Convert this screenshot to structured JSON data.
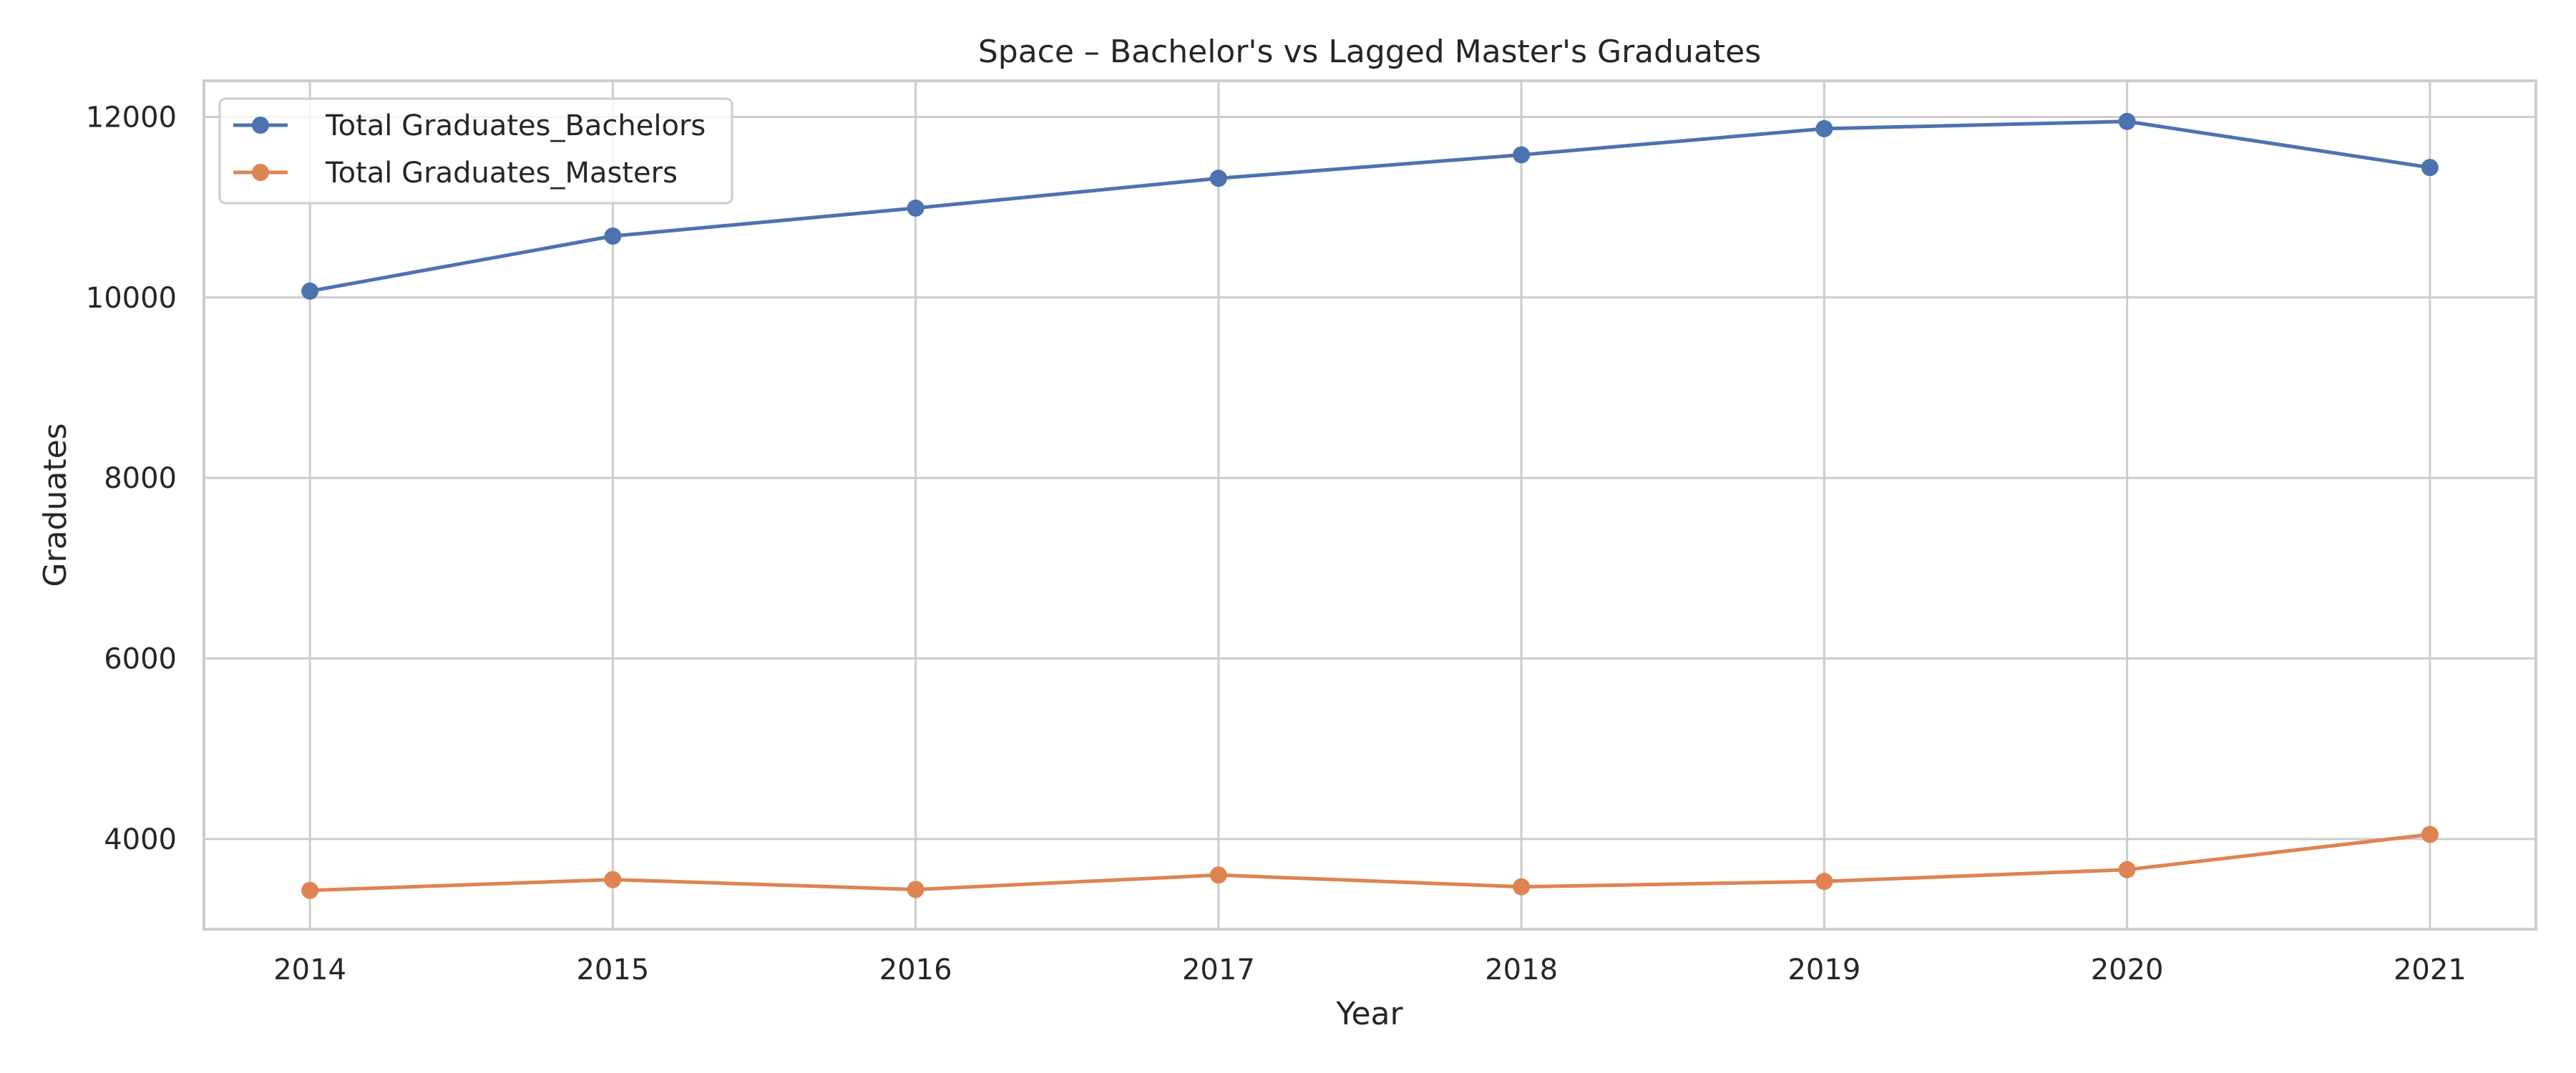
{
  "chart_data": {
    "type": "line",
    "title": "Space – Bachelor's vs Lagged Master's Graduates",
    "xlabel": "Year",
    "ylabel": "Graduates",
    "x": [
      2014,
      2015,
      2016,
      2017,
      2018,
      2019,
      2020,
      2021
    ],
    "x_ticks": [
      "2014",
      "2015",
      "2016",
      "2017",
      "2018",
      "2019",
      "2020",
      "2021"
    ],
    "xlim": [
      2013.65,
      2021.35
    ],
    "y_ticks": [
      "4000",
      "6000",
      "8000",
      "10000",
      "12000"
    ],
    "ylim": [
      3000,
      12400
    ],
    "grid": true,
    "legend_position": "upper left",
    "series": [
      {
        "name": "Total Graduates_Bachelors",
        "color": "#4c72b0",
        "marker": "circle",
        "values": [
          10070,
          10680,
          10990,
          11320,
          11580,
          11870,
          11950,
          11440
        ]
      },
      {
        "name": "Total Graduates_Masters",
        "color": "#dd8452",
        "marker": "circle",
        "values": [
          3430,
          3550,
          3440,
          3600,
          3470,
          3530,
          3660,
          4050
        ]
      }
    ]
  }
}
